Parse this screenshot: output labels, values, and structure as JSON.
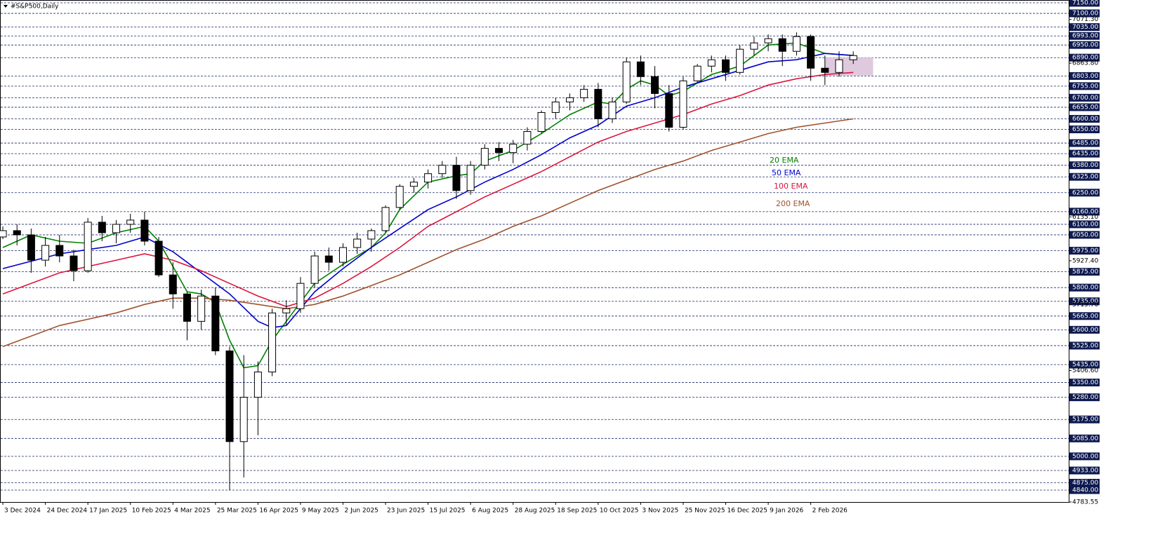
{
  "chart_data": {
    "type": "candlestick",
    "title": "#S&P500,Daily",
    "xlim": [
      -1,
      376
    ],
    "ylim": [
      4783.55,
      7150
    ],
    "xticks": [
      {
        "value": 0,
        "label": "3 Dec 2024"
      },
      {
        "value": 15,
        "label": "24 Dec 2024"
      },
      {
        "value": 30,
        "label": "17 Jan 2025"
      },
      {
        "value": 45,
        "label": "10 Feb 2025"
      },
      {
        "value": 60,
        "label": "4 Mar 2025"
      },
      {
        "value": 75,
        "label": "25 Mar 2025"
      },
      {
        "value": 90,
        "label": "16 Apr 2025"
      },
      {
        "value": 105,
        "label": "9 May 2025"
      },
      {
        "value": 120,
        "label": "2 Jun 2025"
      },
      {
        "value": 135,
        "label": "23 Jun 2025"
      },
      {
        "value": 150,
        "label": "15 Jul 2025"
      },
      {
        "value": 165,
        "label": "6 Aug 2025"
      },
      {
        "value": 180,
        "label": "28 Aug 2025"
      },
      {
        "value": 195,
        "label": "18 Sep 2025"
      },
      {
        "value": 210,
        "label": "10 Oct 2025"
      },
      {
        "value": 225,
        "label": "3 Nov 2025"
      },
      {
        "value": 240,
        "label": "25 Nov 2025"
      },
      {
        "value": 255,
        "label": "16 Dec 2025"
      },
      {
        "value": 270,
        "label": "9 Jan 2026"
      },
      {
        "value": 285,
        "label": "2 Feb 2026"
      }
    ],
    "yticks": [
      {
        "value": 7071.3,
        "label": "7071.30"
      },
      {
        "value": 6863.8,
        "label": "6863.80"
      },
      {
        "value": 6135.1,
        "label": "6135.10"
      },
      {
        "value": 5927.4,
        "label": "5927.40"
      },
      {
        "value": 5719.7,
        "label": "5719.70"
      },
      {
        "value": 5406.6,
        "label": "5406.60"
      },
      {
        "value": 4783.55,
        "label": "4783.55"
      }
    ],
    "levels": [
      {
        "value": 7150,
        "label": "7150.00"
      },
      {
        "value": 7100,
        "label": "7100.00"
      },
      {
        "value": 7035,
        "label": "7035.00"
      },
      {
        "value": 6993,
        "label": "6993.00"
      },
      {
        "value": 6950,
        "label": "6950.00"
      },
      {
        "value": 6890,
        "label": "6890.00"
      },
      {
        "value": 6803,
        "label": "6803.00"
      },
      {
        "value": 6755,
        "label": "6755.00"
      },
      {
        "value": 6700,
        "label": "6700.00"
      },
      {
        "value": 6655,
        "label": "6655.00"
      },
      {
        "value": 6600,
        "label": "6600.00"
      },
      {
        "value": 6550,
        "label": "6550.00"
      },
      {
        "value": 6485,
        "label": "6485.00"
      },
      {
        "value": 6435,
        "label": "6435.00"
      },
      {
        "value": 6380,
        "label": "6380.00"
      },
      {
        "value": 6325,
        "label": "6325.00"
      },
      {
        "value": 6250,
        "label": "6250.00"
      },
      {
        "value": 6160,
        "label": "6160.00"
      },
      {
        "value": 6100,
        "label": "6100.00"
      },
      {
        "value": 6050,
        "label": "6050.00"
      },
      {
        "value": 5975,
        "label": "5975.00"
      },
      {
        "value": 5875,
        "label": "5875.00"
      },
      {
        "value": 5800,
        "label": "5800.00"
      },
      {
        "value": 5735,
        "label": "5735.00"
      },
      {
        "value": 5665,
        "label": "5665.00"
      },
      {
        "value": 5600,
        "label": "5600.00"
      },
      {
        "value": 5525,
        "label": "5525.00"
      },
      {
        "value": 5435,
        "label": "5435.00"
      },
      {
        "value": 5350,
        "label": "5350.00"
      },
      {
        "value": 5280,
        "label": "5280.00"
      },
      {
        "value": 5175,
        "label": "5175.00"
      },
      {
        "value": 5085,
        "label": "5085.00"
      },
      {
        "value": 5000,
        "label": "5000.00"
      },
      {
        "value": 4933,
        "label": "4933.00"
      },
      {
        "value": 4875,
        "label": "4875.00"
      },
      {
        "value": 4840,
        "label": "4840.00"
      }
    ],
    "x": [
      0,
      5,
      10,
      15,
      20,
      25,
      30,
      35,
      40,
      45,
      50,
      55,
      60,
      65,
      70,
      75,
      80,
      85,
      90,
      95,
      100,
      105,
      110,
      115,
      120,
      125,
      130,
      135,
      140,
      145,
      150,
      155,
      160,
      165,
      170,
      175,
      180,
      185,
      190,
      195,
      200,
      205,
      210,
      215,
      220,
      225,
      230,
      235,
      240,
      245,
      250,
      255,
      260,
      265,
      270,
      275,
      280,
      285,
      290,
      295,
      300
    ],
    "open": [
      6040,
      6070,
      6050,
      5930,
      6000,
      5950,
      5880,
      6110,
      6060,
      6100,
      6120,
      6020,
      5860,
      5770,
      5640,
      5760,
      5500,
      5070,
      5280,
      5400,
      5680,
      5700,
      5820,
      5950,
      5920,
      5990,
      6030,
      6070,
      6180,
      6280,
      6300,
      6340,
      6380,
      6260,
      6380,
      6460,
      6440,
      6480,
      6540,
      6630,
      6680,
      6700,
      6740,
      6600,
      6680,
      6870,
      6800,
      6720,
      6560,
      6780,
      6850,
      6880,
      6820,
      6930,
      6960,
      6980,
      6920,
      6990,
      6840,
      6820,
      6880
    ],
    "high": [
      6090,
      6100,
      6080,
      6040,
      6050,
      5980,
      6130,
      6140,
      6120,
      6150,
      6160,
      6040,
      5920,
      5780,
      5790,
      5800,
      5520,
      5480,
      5450,
      5700,
      5740,
      5850,
      5970,
      5990,
      6010,
      6060,
      6080,
      6190,
      6290,
      6320,
      6360,
      6400,
      6420,
      6400,
      6480,
      6490,
      6500,
      6560,
      6640,
      6700,
      6720,
      6760,
      6770,
      6700,
      6890,
      6900,
      6850,
      6760,
      6800,
      6860,
      6900,
      6900,
      6950,
      6990,
      7000,
      7000,
      7010,
      7000,
      6900,
      6920,
      6920
    ],
    "low": [
      6030,
      6000,
      5870,
      5900,
      5920,
      5830,
      5870,
      6020,
      6010,
      6060,
      6000,
      5850,
      5700,
      5550,
      5600,
      5480,
      4840,
      4900,
      5100,
      5380,
      5620,
      5680,
      5800,
      5880,
      5900,
      5960,
      5970,
      6060,
      6170,
      6250,
      6270,
      6320,
      6220,
      6240,
      6360,
      6400,
      6390,
      6450,
      6530,
      6600,
      6640,
      6680,
      6560,
      6580,
      6670,
      6760,
      6650,
      6540,
      6550,
      6770,
      6820,
      6780,
      6810,
      6900,
      6920,
      6850,
      6900,
      6780,
      6760,
      6800,
      6860
    ],
    "close": [
      6070,
      6050,
      5930,
      6000,
      5950,
      5880,
      6110,
      6060,
      6100,
      6120,
      6020,
      5860,
      5770,
      5640,
      5760,
      5500,
      5070,
      5280,
      5400,
      5680,
      5700,
      5820,
      5950,
      5920,
      5990,
      6030,
      6070,
      6180,
      6280,
      6300,
      6340,
      6380,
      6260,
      6380,
      6460,
      6440,
      6480,
      6540,
      6630,
      6680,
      6700,
      6740,
      6600,
      6680,
      6870,
      6800,
      6720,
      6560,
      6780,
      6850,
      6880,
      6820,
      6930,
      6960,
      6980,
      6920,
      6990,
      6840,
      6820,
      6880,
      6900
    ],
    "series": [
      {
        "name": "20 EMA",
        "color": "#008000",
        "x": [
          0,
          10,
          20,
          30,
          40,
          50,
          55,
          60,
          65,
          70,
          75,
          80,
          85,
          90,
          95,
          100,
          105,
          110,
          120,
          130,
          135,
          140,
          150,
          160,
          165,
          170,
          180,
          190,
          200,
          210,
          215,
          220,
          225,
          230,
          235,
          240,
          250,
          260,
          270,
          280,
          290,
          300
        ],
        "values": [
          5990,
          6050,
          6020,
          6010,
          6060,
          6090,
          6020,
          5900,
          5780,
          5770,
          5730,
          5550,
          5420,
          5430,
          5550,
          5640,
          5730,
          5820,
          5910,
          5990,
          6060,
          6170,
          6300,
          6330,
          6340,
          6400,
          6450,
          6530,
          6620,
          6680,
          6670,
          6740,
          6780,
          6760,
          6710,
          6730,
          6810,
          6850,
          6950,
          6960,
          6910,
          6900
        ]
      },
      {
        "name": "50 EMA",
        "color": "#0000cd",
        "x": [
          0,
          20,
          40,
          50,
          60,
          70,
          80,
          90,
          95,
          100,
          110,
          120,
          130,
          140,
          150,
          160,
          170,
          180,
          190,
          200,
          210,
          220,
          230,
          240,
          250,
          260,
          270,
          280,
          290,
          300
        ],
        "values": [
          5890,
          5960,
          6000,
          6040,
          5970,
          5870,
          5770,
          5640,
          5610,
          5620,
          5780,
          5890,
          5990,
          6080,
          6170,
          6230,
          6300,
          6360,
          6430,
          6510,
          6570,
          6660,
          6700,
          6750,
          6790,
          6830,
          6870,
          6880,
          6910,
          6900
        ]
      },
      {
        "name": "100 EMA",
        "color": "#dc143c",
        "x": [
          0,
          20,
          40,
          50,
          60,
          70,
          80,
          90,
          100,
          110,
          120,
          130,
          140,
          150,
          160,
          170,
          180,
          190,
          200,
          210,
          220,
          230,
          240,
          250,
          260,
          270,
          280,
          290,
          300
        ],
        "values": [
          5770,
          5870,
          5930,
          5960,
          5930,
          5880,
          5820,
          5760,
          5710,
          5750,
          5820,
          5900,
          5990,
          6090,
          6160,
          6230,
          6290,
          6350,
          6420,
          6490,
          6540,
          6580,
          6620,
          6670,
          6710,
          6760,
          6790,
          6810,
          6820
        ]
      },
      {
        "name": "200 EMA",
        "color": "#a0522d",
        "x": [
          0,
          20,
          40,
          50,
          60,
          70,
          80,
          90,
          100,
          110,
          120,
          130,
          140,
          150,
          160,
          170,
          180,
          190,
          200,
          210,
          220,
          230,
          240,
          250,
          260,
          270,
          280,
          290,
          300
        ],
        "values": [
          5520,
          5620,
          5680,
          5720,
          5750,
          5750,
          5740,
          5720,
          5700,
          5720,
          5760,
          5810,
          5860,
          5920,
          5980,
          6030,
          6090,
          6140,
          6200,
          6260,
          6310,
          6360,
          6400,
          6450,
          6490,
          6530,
          6560,
          6580,
          6600
        ]
      }
    ],
    "zone": {
      "x": [
        290,
        307
      ],
      "y": [
        6805,
        6891
      ],
      "color": "#d8bfd8"
    }
  }
}
